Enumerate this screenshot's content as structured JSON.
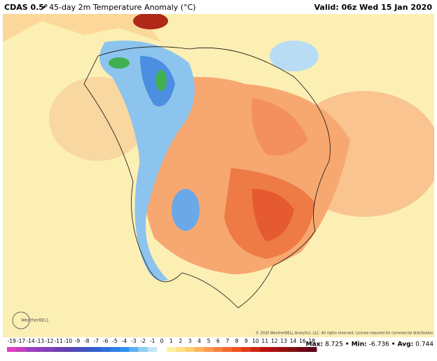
{
  "header": {
    "model": "CDAS 0.5°",
    "title": "• 45-day 2m Temperature Anomaly (°C)",
    "valid": "Valid: 06z Wed 15 Jan 2020"
  },
  "logo": "WeatherBELL",
  "copyright": "© 2020 WeatherBELL Analytics, LLC. All rights reserved. License required for commercial distribution.",
  "colorbar": {
    "ticks": [
      -19,
      -17,
      -14,
      -13,
      -12,
      -11,
      -10,
      -9,
      -8,
      -7,
      -6,
      -5,
      -4,
      -3,
      -2,
      -1,
      0,
      1,
      2,
      3,
      4,
      5,
      6,
      7,
      8,
      9,
      10,
      11,
      12,
      13,
      14,
      16,
      18
    ]
  },
  "stats": {
    "max_label": "Max:",
    "max": 8.725,
    "min_label": "• Min:",
    "min": -6.736,
    "avg_label": "• Avg:",
    "avg": 0.744
  }
}
